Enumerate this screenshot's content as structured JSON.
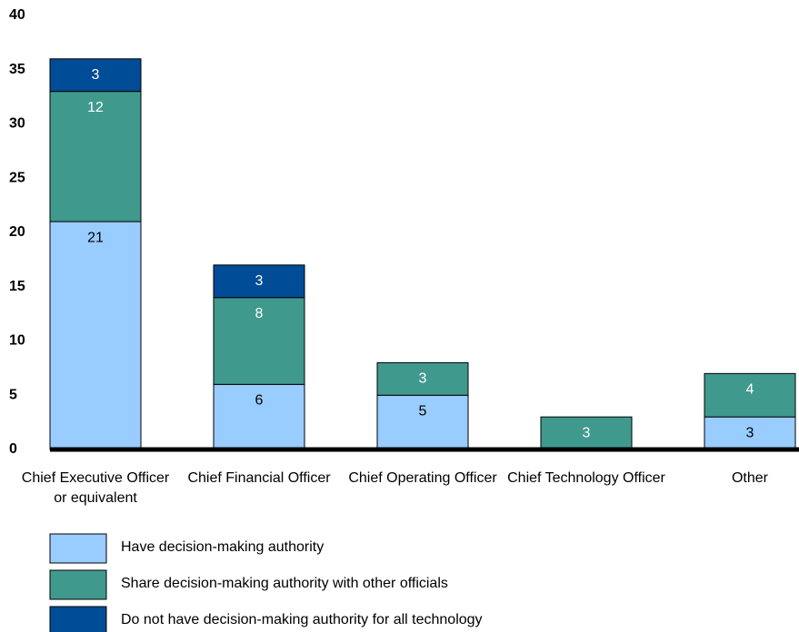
{
  "chart_data": {
    "type": "stacked_bar",
    "categories": [
      "Chief Executive Officer or equivalent",
      "Chief Financial Officer",
      "Chief Operating Officer",
      "Chief Technology Officer",
      "Other"
    ],
    "series": [
      {
        "name": "Have decision-making authority",
        "color": "#99ccff",
        "label_color": "#000000",
        "values": [
          21,
          6,
          5,
          null,
          3
        ]
      },
      {
        "name": "Share decision-making authority with other officials",
        "color": "#40998d",
        "label_color": "#ffffff",
        "values": [
          12,
          8,
          3,
          3,
          4
        ]
      },
      {
        "name": "Do not have decision-making authority for all technology",
        "color": "#004c97",
        "label_color": "#ffffff",
        "values": [
          3,
          3,
          null,
          null,
          null
        ]
      }
    ],
    "ylim": [
      0,
      40
    ],
    "yticks": [
      0,
      5,
      10,
      15,
      20,
      25,
      30,
      35,
      40
    ],
    "grid": false
  }
}
